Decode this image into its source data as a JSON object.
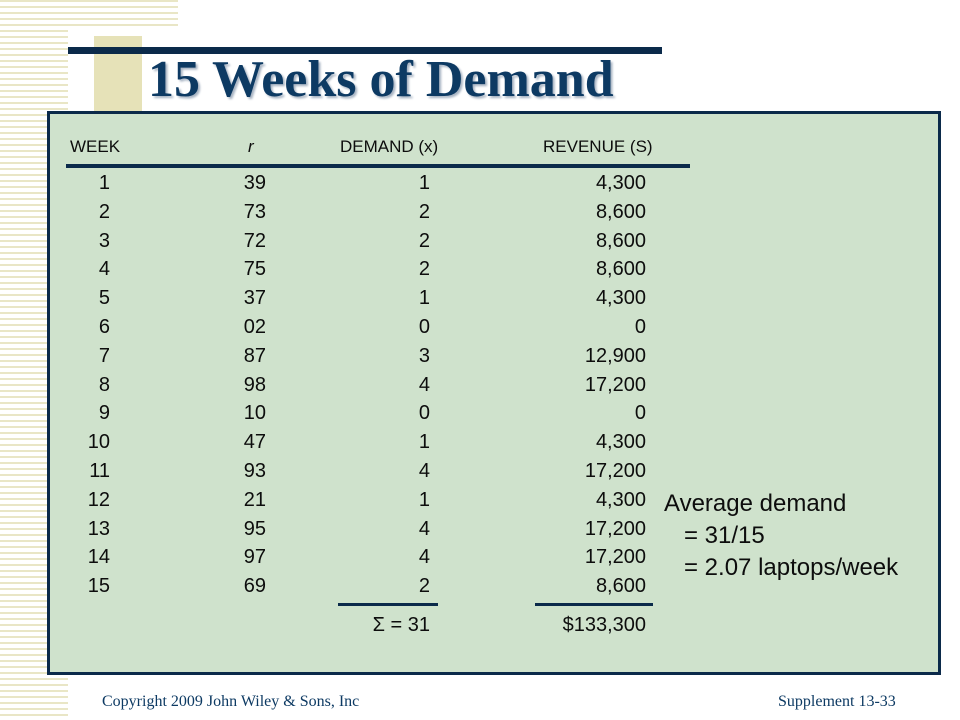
{
  "slide": {
    "title": "15 Weeks of Demand"
  },
  "table": {
    "headers": {
      "week": "WEEK",
      "r": "r",
      "demand": "DEMAND (x)",
      "revenue": "REVENUE (S)"
    },
    "rows": [
      {
        "week": "1",
        "r": "39",
        "demand": "1",
        "revenue": "4,300"
      },
      {
        "week": "2",
        "r": "73",
        "demand": "2",
        "revenue": "8,600"
      },
      {
        "week": "3",
        "r": "72",
        "demand": "2",
        "revenue": "8,600"
      },
      {
        "week": "4",
        "r": "75",
        "demand": "2",
        "revenue": "8,600"
      },
      {
        "week": "5",
        "r": "37",
        "demand": "1",
        "revenue": "4,300"
      },
      {
        "week": "6",
        "r": "02",
        "demand": "0",
        "revenue": "0"
      },
      {
        "week": "7",
        "r": "87",
        "demand": "3",
        "revenue": "12,900"
      },
      {
        "week": "8",
        "r": "98",
        "demand": "4",
        "revenue": "17,200"
      },
      {
        "week": "9",
        "r": "10",
        "demand": "0",
        "revenue": "0"
      },
      {
        "week": "10",
        "r": "47",
        "demand": "1",
        "revenue": "4,300"
      },
      {
        "week": "11",
        "r": "93",
        "demand": "4",
        "revenue": "17,200"
      },
      {
        "week": "12",
        "r": "21",
        "demand": "1",
        "revenue": "4,300"
      },
      {
        "week": "13",
        "r": "95",
        "demand": "4",
        "revenue": "17,200"
      },
      {
        "week": "14",
        "r": "97",
        "demand": "4",
        "revenue": "17,200"
      },
      {
        "week": "15",
        "r": "69",
        "demand": "2",
        "revenue": "8,600"
      }
    ],
    "sum_demand": "Σ = 31",
    "sum_revenue": "$133,300"
  },
  "note": {
    "line1": "Average demand",
    "line2": "= 31/15",
    "line3": "= 2.07 laptops/week"
  },
  "footer": {
    "copyright": "Copyright 2009 John Wiley & Sons, Inc",
    "slide_ref": "Supplement 13-33"
  },
  "colors": {
    "panel": "#cfe2cc",
    "navy": "#0b2a4a",
    "title": "#0d3a63"
  }
}
